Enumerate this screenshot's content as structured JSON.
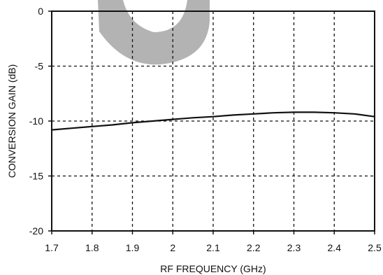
{
  "chart_data": {
    "type": "line",
    "title": "",
    "xlabel": "RF FREQUENCY (GHz)",
    "ylabel": "CONVERSION GAIN (dB)",
    "xlim": [
      1.7,
      2.5
    ],
    "ylim": [
      -20,
      0
    ],
    "x_ticks": [
      "1.7",
      "1.8",
      "1.9",
      "2",
      "2.1",
      "2.2",
      "2.3",
      "2.4",
      "2.5"
    ],
    "y_ticks": [
      "0",
      "-5",
      "-10",
      "-15",
      "-20"
    ],
    "grid": true,
    "grid_style": "dashed",
    "series": [
      {
        "color": "#111111",
        "x": [
          1.7,
          1.75,
          1.8,
          1.85,
          1.9,
          1.95,
          2.0,
          2.05,
          2.1,
          2.15,
          2.2,
          2.25,
          2.3,
          2.35,
          2.4,
          2.45,
          2.5
        ],
        "y": [
          -10.8,
          -10.65,
          -10.5,
          -10.35,
          -10.15,
          -10.0,
          -9.85,
          -9.7,
          -9.6,
          -9.45,
          -9.35,
          -9.25,
          -9.2,
          -9.2,
          -9.25,
          -9.35,
          -9.6
        ]
      }
    ]
  },
  "watermark": {
    "color": "#b3b3b3"
  }
}
